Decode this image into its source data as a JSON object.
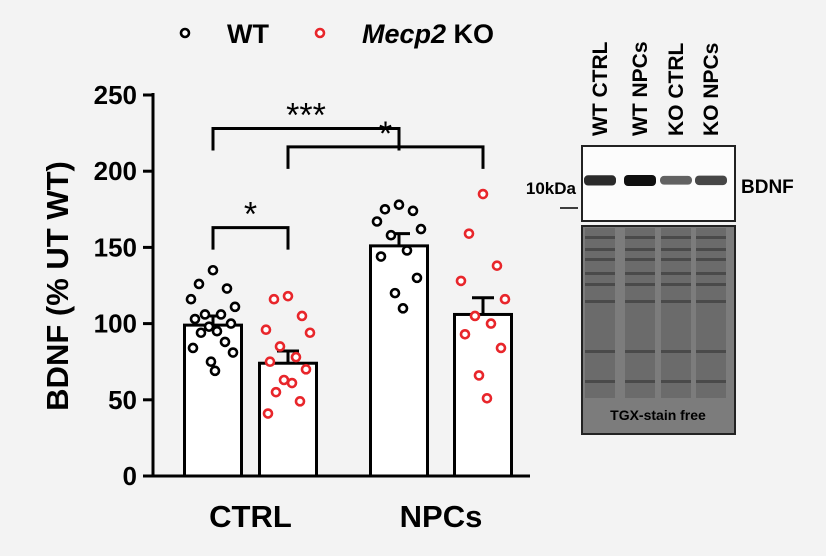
{
  "chart_data": {
    "type": "bar",
    "ylabel": "BDNF (% UT WT)",
    "ylim": [
      0,
      250
    ],
    "yticks": [
      0,
      50,
      100,
      150,
      200,
      250
    ],
    "categories": [
      "CTRL",
      "NPCs"
    ],
    "legend_placement": "top",
    "grid": false,
    "series": [
      {
        "name": "WT",
        "color": "#000000",
        "values": [
          99,
          151
        ],
        "sem": [
          6,
          8
        ],
        "points": [
          [
            135,
            126,
            123,
            116,
            111,
            106,
            106,
            103,
            100,
            98,
            95,
            94,
            88,
            84,
            81,
            75,
            69
          ],
          [
            178,
            175,
            174,
            167,
            162,
            158,
            148,
            144,
            130,
            120,
            110
          ]
        ]
      },
      {
        "name": "Mecp2 KO",
        "name_italic": "Mecp2",
        "name_rest": " KO",
        "color": "#e8262b",
        "values": [
          74,
          106
        ],
        "sem": [
          8,
          11
        ],
        "points": [
          [
            118,
            116,
            105,
            96,
            94,
            85,
            78,
            75,
            70,
            63,
            61,
            55,
            49,
            41
          ],
          [
            185,
            159,
            138,
            128,
            116,
            105,
            100,
            93,
            84,
            66,
            51
          ]
        ]
      }
    ],
    "significance": [
      {
        "label": "***",
        "from": {
          "category": 0,
          "series": 0
        },
        "to": {
          "category": 1,
          "series": 0
        },
        "y": 228
      },
      {
        "label": "*",
        "from": {
          "category": 0,
          "series": 1
        },
        "to": {
          "category": 1,
          "series": 1
        },
        "y": 216
      },
      {
        "label": "*",
        "from": {
          "category": 0,
          "series": 0
        },
        "to": {
          "category": 0,
          "series": 1
        },
        "y": 163
      }
    ]
  },
  "blot": {
    "lanes": [
      "WT CTRL",
      "WT NPCs",
      "KO CTRL",
      "KO NPCs"
    ],
    "marker": "10kDa",
    "band_label": "BDNF",
    "stain_label": "TGX-stain free",
    "band_intensity": [
      0.85,
      1.0,
      0.55,
      0.7
    ]
  }
}
